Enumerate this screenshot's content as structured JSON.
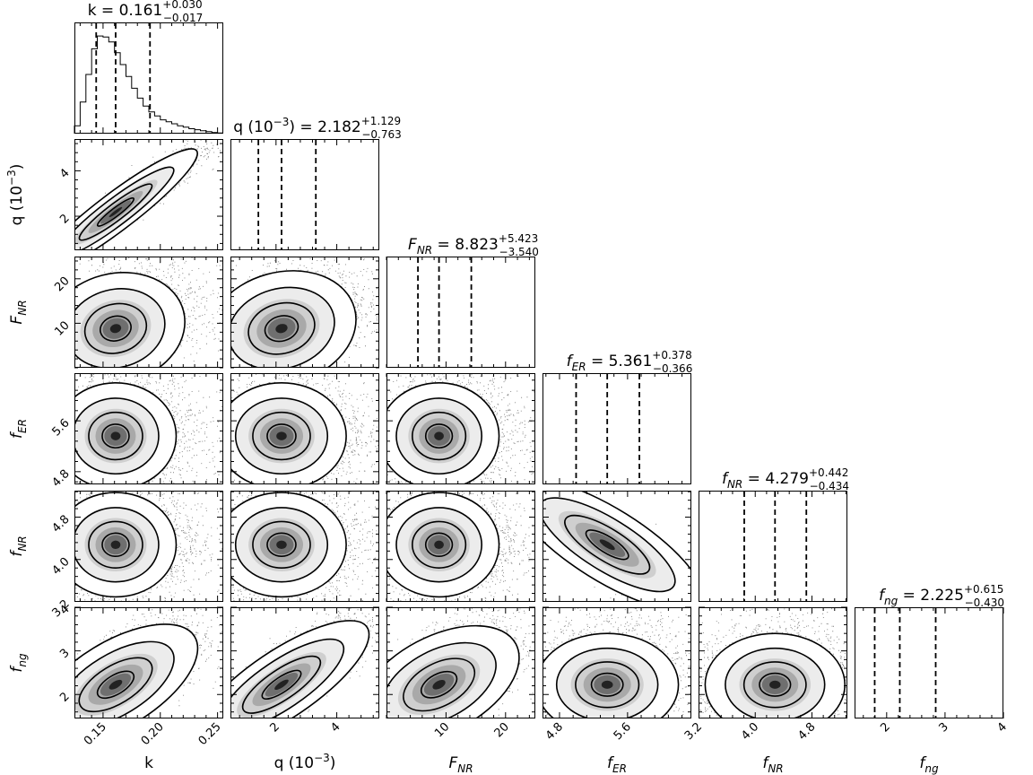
{
  "chart_data": {
    "type": "corner",
    "parameters": [
      {
        "key": "k",
        "label": "k",
        "sub": "",
        "suffix": "",
        "title_prefix": "k = ",
        "value": "0.161",
        "plus": "+0.030",
        "minus": "−0.017",
        "range": [
          0.125,
          0.255
        ],
        "ticks": [
          0.15,
          0.2,
          0.25
        ],
        "tick_labels": [
          "0.15",
          "0.20",
          "0.25"
        ],
        "median": 0.161,
        "q16": 0.144,
        "q84": 0.191
      },
      {
        "key": "q",
        "label": "q (10",
        "sub": "",
        "suffix": ")",
        "title_prefix": "q (10",
        "value": "2.182",
        "plus": "+1.129",
        "minus": "−0.763",
        "range": [
          0.5,
          5.4
        ],
        "ticks": [
          2,
          4
        ],
        "tick_labels": [
          "2",
          "4"
        ],
        "median": 2.182,
        "q16": 1.419,
        "q84": 3.311
      },
      {
        "key": "F_NR",
        "label": "F",
        "sub": "NR",
        "suffix": "",
        "title_prefix": "F",
        "value": "8.823",
        "plus": "+5.423",
        "minus": "−3.540",
        "range": [
          0,
          25
        ],
        "ticks": [
          10,
          20
        ],
        "tick_labels": [
          "10",
          "20"
        ],
        "median": 8.823,
        "q16": 5.283,
        "q84": 14.246
      },
      {
        "key": "f_ER",
        "label": "f",
        "sub": "ER",
        "suffix": "",
        "title_prefix": "f",
        "value": "5.361",
        "plus": "+0.378",
        "minus": "−0.366",
        "range": [
          4.6,
          6.35
        ],
        "ticks": [
          4.8,
          5.6
        ],
        "tick_labels": [
          "4.8",
          "5.6"
        ],
        "median": 5.361,
        "q16": 4.995,
        "q84": 5.739
      },
      {
        "key": "f_NR",
        "label": "f",
        "sub": "NR",
        "suffix": "",
        "title_prefix": "f",
        "value": "4.279",
        "plus": "+0.442",
        "minus": "−0.434",
        "range": [
          3.2,
          5.3
        ],
        "ticks": [
          3.2,
          4.0,
          4.8
        ],
        "tick_labels": [
          "3.2",
          "4.0",
          "4.8"
        ],
        "median": 4.279,
        "q16": 3.845,
        "q84": 4.721
      },
      {
        "key": "f_ng",
        "label": "f",
        "sub": "ng",
        "suffix": "",
        "title_prefix": "f",
        "value": "2.225",
        "plus": "+0.615",
        "minus": "−0.430",
        "range": [
          1.45,
          4.0
        ],
        "ticks": [
          2,
          3,
          4
        ],
        "tick_labels": [
          "2",
          "3",
          "4"
        ],
        "median": 2.225,
        "q16": 1.795,
        "q84": 2.84
      }
    ],
    "q_exponent": "−3",
    "k_histogram": {
      "bin_edges": [
        0.125,
        0.13,
        0.135,
        0.14,
        0.145,
        0.15,
        0.155,
        0.16,
        0.165,
        0.17,
        0.175,
        0.18,
        0.185,
        0.19,
        0.195,
        0.2,
        0.205,
        0.21,
        0.215,
        0.22,
        0.225,
        0.23,
        0.235,
        0.24,
        0.245,
        0.25,
        0.255
      ],
      "counts": [
        0.08,
        0.32,
        0.6,
        0.86,
        0.99,
        0.98,
        0.93,
        0.82,
        0.7,
        0.58,
        0.46,
        0.36,
        0.28,
        0.22,
        0.18,
        0.14,
        0.12,
        0.1,
        0.08,
        0.065,
        0.05,
        0.04,
        0.03,
        0.02,
        0.012,
        0.006
      ]
    },
    "correlations": [
      [
        0,
        0.95,
        0.35,
        0.05,
        0.05,
        0.72
      ],
      [
        0.95,
        0,
        0.4,
        0.05,
        0.05,
        0.85
      ],
      [
        0.35,
        0.4,
        0,
        0.05,
        0.05,
        0.62
      ],
      [
        0.05,
        0.05,
        0.05,
        0,
        -0.85,
        0.1
      ],
      [
        0.05,
        0.05,
        0.05,
        -0.85,
        0,
        0.05
      ],
      [
        0.72,
        0.85,
        0.62,
        0.1,
        0.05,
        0
      ]
    ]
  }
}
